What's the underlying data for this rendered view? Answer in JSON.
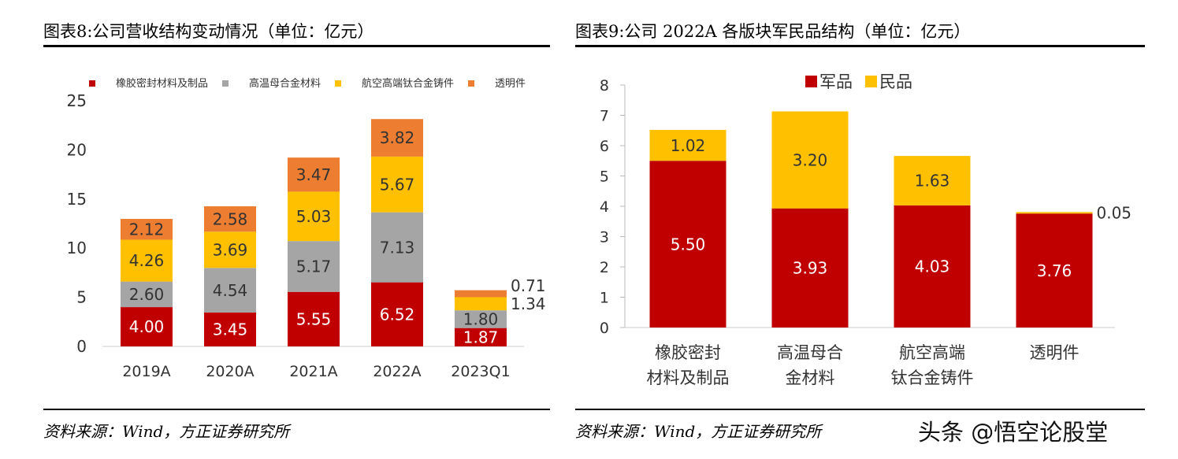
{
  "chart_data": [
    {
      "type": "bar",
      "stacked": true,
      "title": "图表8:公司营收结构变动情况（单位：亿元）",
      "categories": [
        "2019A",
        "2020A",
        "2021A",
        "2022A",
        "2023Q1"
      ],
      "ylim": [
        0,
        25
      ],
      "yticks": [
        0,
        5,
        10,
        15,
        20,
        25
      ],
      "legend_position": "top",
      "grid": false,
      "series": [
        {
          "name": "橡胶密封材料及制品",
          "color": "#c00000",
          "values": [
            4.0,
            3.45,
            5.55,
            6.52,
            1.87
          ]
        },
        {
          "name": "高温母合金材料",
          "color": "#a5a5a5",
          "values": [
            2.6,
            4.54,
            5.17,
            7.13,
            1.8
          ]
        },
        {
          "name": "航空高端钛合金铸件",
          "color": "#ffc000",
          "values": [
            4.26,
            3.69,
            5.03,
            5.67,
            1.34
          ]
        },
        {
          "name": "透明件",
          "color": "#ed7d31",
          "values": [
            2.12,
            2.58,
            3.47,
            3.82,
            0.71
          ]
        }
      ],
      "source": "资料来源：Wind，方正证券研究所"
    },
    {
      "type": "bar",
      "stacked": true,
      "title": "图表9:公司 2022A 各版块军民品结构（单位：亿元）",
      "categories": [
        [
          "橡胶密封",
          "材料及制品"
        ],
        [
          "高温母合",
          "金材料"
        ],
        [
          "航空高端",
          "钛合金铸件"
        ],
        [
          "透明件"
        ]
      ],
      "ylim": [
        0,
        8
      ],
      "yticks": [
        0,
        1,
        2,
        3,
        4,
        5,
        6,
        7,
        8
      ],
      "legend_position": "top",
      "grid": false,
      "series": [
        {
          "name": "军品",
          "color": "#c00000",
          "values": [
            5.5,
            3.93,
            4.03,
            3.76
          ]
        },
        {
          "name": "民品",
          "color": "#ffc000",
          "values": [
            1.02,
            3.2,
            1.63,
            0.05
          ]
        }
      ],
      "source": "资料来源：Wind，方正证券研究所"
    }
  ],
  "watermark": "头条 @悟空论股堂"
}
